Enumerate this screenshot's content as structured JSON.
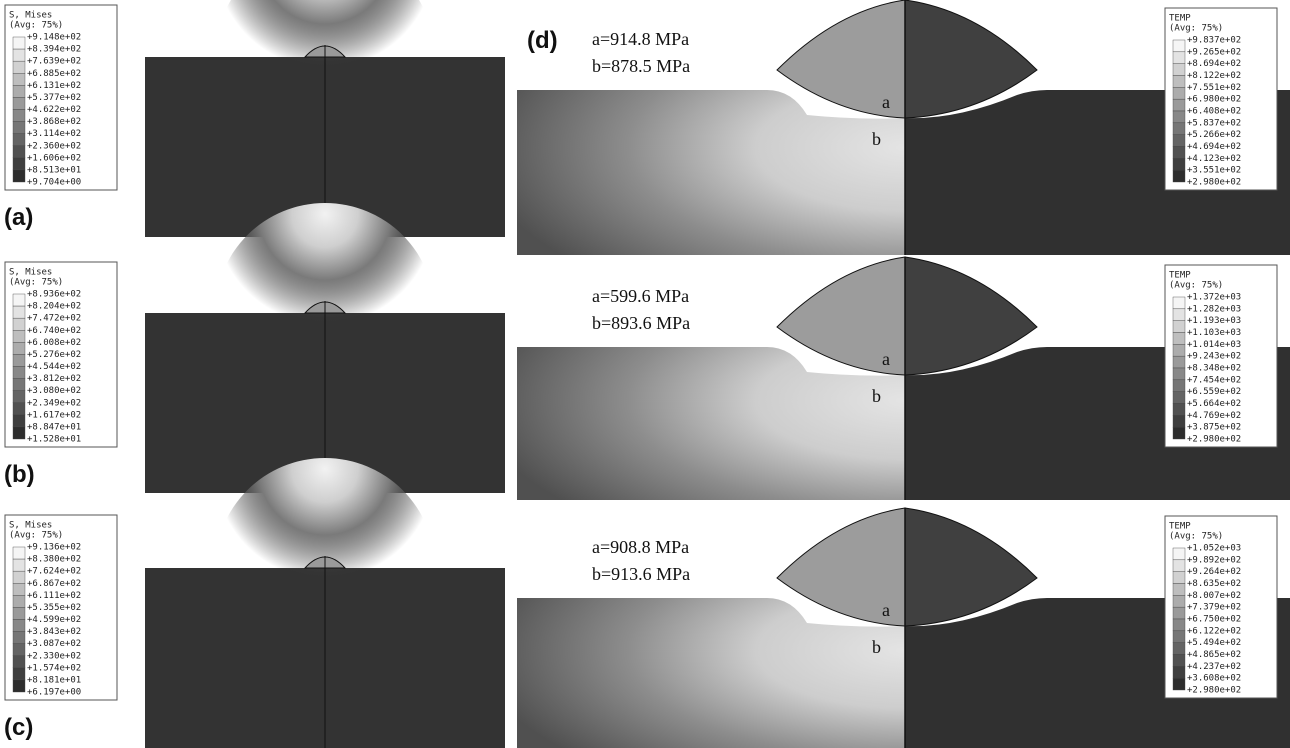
{
  "left_panels": [
    {
      "label": "(a)",
      "legend": {
        "title": "S, Mises",
        "subtitle": "(Avg: 75%)",
        "values": [
          "+9.148e+02",
          "+8.394e+02",
          "+7.639e+02",
          "+6.885e+02",
          "+6.131e+02",
          "+5.377e+02",
          "+4.622e+02",
          "+3.868e+02",
          "+3.114e+02",
          "+2.360e+02",
          "+1.606e+02",
          "+8.513e+01",
          "+9.704e+00"
        ]
      }
    },
    {
      "label": "(b)",
      "legend": {
        "title": "S, Mises",
        "subtitle": "(Avg: 75%)",
        "values": [
          "+8.936e+02",
          "+8.204e+02",
          "+7.472e+02",
          "+6.740e+02",
          "+6.008e+02",
          "+5.276e+02",
          "+4.544e+02",
          "+3.812e+02",
          "+3.080e+02",
          "+2.349e+02",
          "+1.617e+02",
          "+8.847e+01",
          "+1.528e+01"
        ]
      }
    },
    {
      "label": "(c)",
      "legend": {
        "title": "S, Mises",
        "subtitle": "(Avg: 75%)",
        "values": [
          "+9.136e+02",
          "+8.380e+02",
          "+7.624e+02",
          "+6.867e+02",
          "+6.111e+02",
          "+5.355e+02",
          "+4.599e+02",
          "+3.843e+02",
          "+3.087e+02",
          "+2.330e+02",
          "+1.574e+02",
          "+8.181e+01",
          "+6.197e+00"
        ]
      }
    }
  ],
  "right_label": "(d)",
  "right_panels": [
    {
      "annotation_a": "a=914.8 MPa",
      "annotation_b": "b=878.5 MPa",
      "point_a": "a",
      "point_b": "b",
      "legend": {
        "title": "TEMP",
        "subtitle": "(Avg: 75%)",
        "values": [
          "+9.837e+02",
          "+9.265e+02",
          "+8.694e+02",
          "+8.122e+02",
          "+7.551e+02",
          "+6.980e+02",
          "+6.408e+02",
          "+5.837e+02",
          "+5.266e+02",
          "+4.694e+02",
          "+4.123e+02",
          "+3.551e+02",
          "+2.980e+02"
        ]
      }
    },
    {
      "annotation_a": "a=599.6 MPa",
      "annotation_b": "b=893.6 MPa",
      "point_a": "a",
      "point_b": "b",
      "legend": {
        "title": "TEMP",
        "subtitle": "(Avg: 75%)",
        "values": [
          "+1.372e+03",
          "+1.282e+03",
          "+1.193e+03",
          "+1.103e+03",
          "+1.014e+03",
          "+9.243e+02",
          "+8.348e+02",
          "+7.454e+02",
          "+6.559e+02",
          "+5.664e+02",
          "+4.769e+02",
          "+3.875e+02",
          "+2.980e+02"
        ]
      }
    },
    {
      "annotation_a": "a=908.8 MPa",
      "annotation_b": "b=913.6 MPa",
      "point_a": "a",
      "point_b": "b",
      "legend": {
        "title": "TEMP",
        "subtitle": "(Avg: 75%)",
        "values": [
          "+1.052e+03",
          "+9.892e+02",
          "+9.264e+02",
          "+8.635e+02",
          "+8.007e+02",
          "+7.379e+02",
          "+6.750e+02",
          "+6.122e+02",
          "+5.494e+02",
          "+4.865e+02",
          "+4.237e+02",
          "+3.608e+02",
          "+2.980e+02"
        ]
      }
    }
  ]
}
